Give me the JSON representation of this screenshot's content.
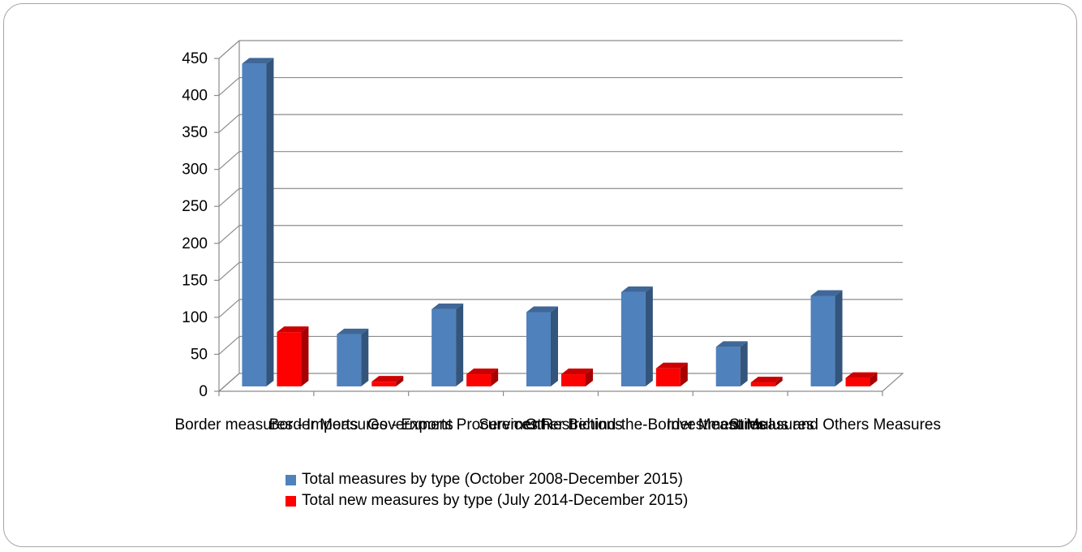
{
  "chart_data": {
    "type": "bar",
    "title": "",
    "xlabel": "",
    "ylabel": "",
    "ylim": [
      0,
      450
    ],
    "yticks": [
      0,
      50,
      100,
      150,
      200,
      250,
      300,
      350,
      400,
      450
    ],
    "grid": true,
    "legend_position": "bottom",
    "categories": [
      "Border measures - Imports",
      "Border Measures - Exports",
      "Government Procurement",
      "Services Restrictions",
      "Other Behind-the-Border Measures",
      "Investment Measures",
      "Stimulus and Others Measures"
    ],
    "series": [
      {
        "name": "Total measures by type (October 2008-December 2015)",
        "color": "#4f81bd",
        "values": [
          443,
          77,
          111,
          107,
          134,
          60,
          129
        ]
      },
      {
        "name": "Total new measures by type (July 2014-December 2015)",
        "color": "#ff0000",
        "values": [
          80,
          13,
          23,
          23,
          31,
          12,
          18
        ]
      }
    ]
  }
}
